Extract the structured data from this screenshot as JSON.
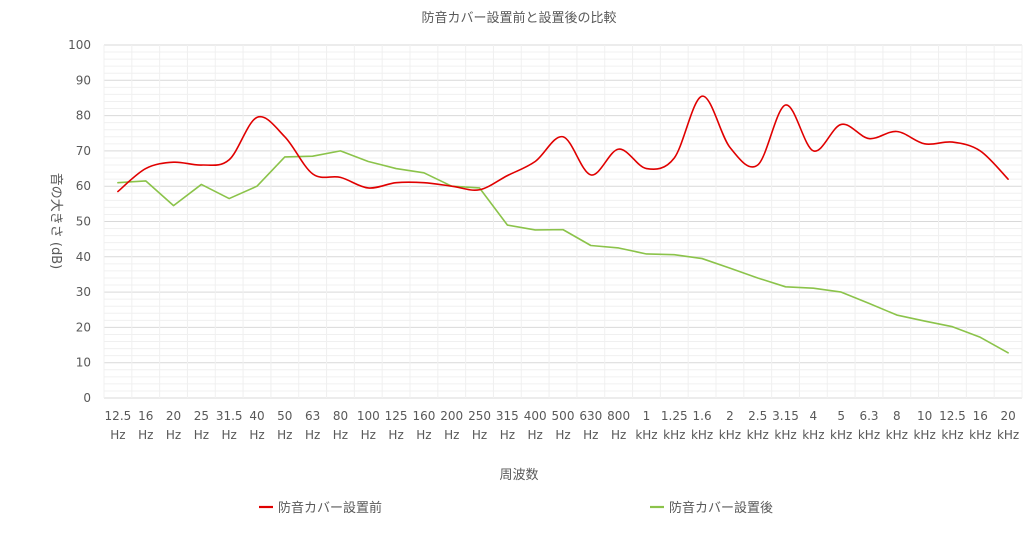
{
  "chart_data": {
    "type": "line",
    "title": "防音カバー設置前と設置後の比較",
    "xlabel": "周波数",
    "ylabel": "音の大きさ (dB)",
    "ylim": [
      0,
      100
    ],
    "yticks": [
      0,
      10,
      20,
      30,
      40,
      50,
      60,
      70,
      80,
      90,
      100
    ],
    "grid": true,
    "legend_position": "bottom",
    "categories": [
      [
        "12.5",
        "Hz"
      ],
      [
        "16",
        "Hz"
      ],
      [
        "20",
        "Hz"
      ],
      [
        "25",
        "Hz"
      ],
      [
        "31.5",
        "Hz"
      ],
      [
        "40",
        "Hz"
      ],
      [
        "50",
        "Hz"
      ],
      [
        "63",
        "Hz"
      ],
      [
        "80",
        "Hz"
      ],
      [
        "100",
        "Hz"
      ],
      [
        "125",
        "Hz"
      ],
      [
        "160",
        "Hz"
      ],
      [
        "200",
        "Hz"
      ],
      [
        "250",
        "Hz"
      ],
      [
        "315",
        "Hz"
      ],
      [
        "400",
        "Hz"
      ],
      [
        "500",
        "Hz"
      ],
      [
        "630",
        "Hz"
      ],
      [
        "800",
        "Hz"
      ],
      [
        "1",
        "kHz"
      ],
      [
        "1.25",
        "kHz"
      ],
      [
        "1.6",
        "kHz"
      ],
      [
        "2",
        "kHz"
      ],
      [
        "2.5",
        "kHz"
      ],
      [
        "3.15",
        "kHz"
      ],
      [
        "4",
        "kHz"
      ],
      [
        "5",
        "kHz"
      ],
      [
        "6.3",
        "kHz"
      ],
      [
        "8",
        "kHz"
      ],
      [
        "10",
        "kHz"
      ],
      [
        "12.5",
        "kHz"
      ],
      [
        "16",
        "kHz"
      ],
      [
        "20",
        "kHz"
      ]
    ],
    "series": [
      {
        "name": "防音カバー設置前",
        "color": "#e00000",
        "smooth": true,
        "values": [
          58.5,
          65,
          66.8,
          66,
          67.5,
          79.5,
          74,
          63.5,
          62.5,
          59.5,
          61,
          61,
          60,
          59,
          63,
          67,
          74,
          63.2,
          70.5,
          65,
          68,
          85.5,
          71,
          66,
          83,
          70,
          77.5,
          73.5,
          75.5,
          72,
          72.5,
          70,
          62
        ]
      },
      {
        "name": "防音カバー設置後",
        "color": "#8bc34a",
        "smooth": false,
        "values": [
          61,
          61.5,
          54.5,
          60.5,
          56.5,
          60,
          68.3,
          68.5,
          70,
          67,
          65,
          63.8,
          60,
          59.5,
          49,
          47.6,
          47.7,
          43.2,
          42.5,
          40.8,
          40.6,
          39.5,
          36.8,
          34,
          31.5,
          31.1,
          30,
          26.8,
          23.5,
          21.8,
          20.2,
          17.2,
          12.8
        ]
      }
    ]
  }
}
